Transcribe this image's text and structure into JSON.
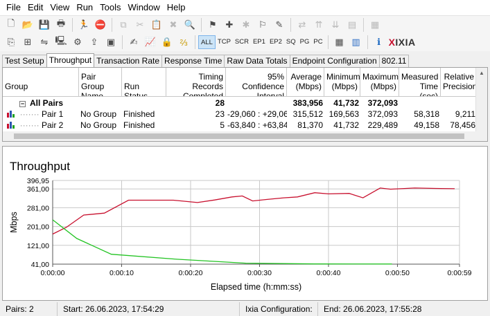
{
  "menu": [
    "File",
    "Edit",
    "View",
    "Run",
    "Tools",
    "Window",
    "Help"
  ],
  "toolbar2": {
    "filters": [
      "ALL",
      "TCP",
      "SCR",
      "EP1",
      "EP2",
      "SQ",
      "PG",
      "PC"
    ],
    "brand": "XIXIA"
  },
  "tabs": [
    {
      "label": "Test Setup",
      "active": false
    },
    {
      "label": "Throughput",
      "active": true
    },
    {
      "label": "Transaction Rate",
      "active": false
    },
    {
      "label": "Response Time",
      "active": false
    },
    {
      "label": "Raw Data Totals",
      "active": false
    },
    {
      "label": "Endpoint Configuration",
      "active": false
    },
    {
      "label": "802.11",
      "active": false
    }
  ],
  "grid": {
    "columns": [
      "Group",
      "Pair Group Name",
      "Run Status",
      "Timing Records Completed",
      "95% Confidence Interval",
      "Average (Mbps)",
      "Minimum (Mbps)",
      "Maximum (Mbps)",
      "Measured Time (sec)",
      "Relative Precision"
    ],
    "summary": {
      "group": "All Pairs",
      "records": "28",
      "avg": "383,956",
      "min": "41,732",
      "max": "372,093"
    },
    "rows": [
      {
        "label": "Pair 1",
        "group_name": "No Group",
        "status": "Finished",
        "records": "23",
        "ci": "-29,060 : +29,060",
        "avg": "315,512",
        "min": "169,563",
        "max": "372,093",
        "time": "58,318",
        "precision": "9,211"
      },
      {
        "label": "Pair 2",
        "group_name": "No Group",
        "status": "Finished",
        "records": "5",
        "ci": "-63,840 : +63,840",
        "avg": "81,370",
        "min": "41,732",
        "max": "229,489",
        "time": "49,158",
        "precision": "78,456"
      }
    ]
  },
  "chart_data": {
    "type": "line",
    "title": "Throughput",
    "xlabel": "Elapsed time (h:mm:ss)",
    "ylabel": "Mbps",
    "xlim": [
      0,
      59
    ],
    "ylim": [
      41,
      396.95
    ],
    "yticks": [
      41,
      121,
      201,
      281,
      361,
      396.95
    ],
    "ytick_labels": [
      "41,00",
      "121,00",
      "201,00",
      "281,00",
      "361,00",
      "396,95"
    ],
    "xticks": [
      0,
      10,
      20,
      30,
      40,
      50,
      59
    ],
    "xtick_labels": [
      "0:00:00",
      "0:00:10",
      "0:00:20",
      "0:00:30",
      "0:00:40",
      "0:00:50",
      "0:00:59"
    ],
    "grid": true,
    "series": [
      {
        "color": "#c8102e",
        "x": [
          0,
          2,
          4.5,
          7.5,
          11,
          14.5,
          17.5,
          21,
          23.5,
          26,
          27.5,
          29,
          31,
          33.5,
          35.5,
          38,
          40,
          43,
          45,
          47.5,
          49,
          52.5,
          55.5,
          58.3
        ],
        "y": [
          169,
          198,
          250,
          258,
          313,
          313,
          313,
          303,
          314,
          327,
          331,
          310,
          316,
          323,
          327,
          345,
          340,
          342,
          323,
          365,
          360,
          365,
          363,
          362
        ]
      },
      {
        "color": "#22c322",
        "x": [
          0,
          3.5,
          8.5,
          18,
          28,
          38,
          49.2
        ],
        "y": [
          229.5,
          150,
          83,
          62,
          45,
          42,
          41.7
        ]
      }
    ]
  },
  "status": {
    "pairs": "Pairs: 2",
    "start": "Start: 26.06.2023, 17:54:29",
    "config": "Ixia Configuration:",
    "end": "End: 26.06.2023, 17:55:28"
  }
}
